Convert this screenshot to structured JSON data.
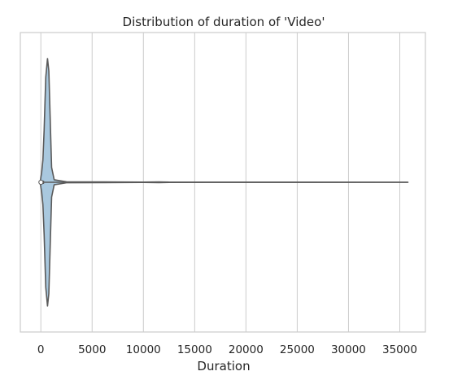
{
  "chart_data": {
    "type": "violin",
    "title": "Distribution of duration of 'Video'",
    "xlabel": "Duration",
    "ylabel": "",
    "xlim": [
      -2000,
      37500
    ],
    "xticks": [
      0,
      5000,
      10000,
      15000,
      20000,
      25000,
      30000,
      35000
    ],
    "xtick_labels": [
      "0",
      "5000",
      "10000",
      "15000",
      "20000",
      "25000",
      "30000",
      "35000"
    ],
    "grid": "vertical",
    "orientation": "horizontal",
    "summary": {
      "min": 0,
      "max": 35800,
      "q1": 0,
      "median": 10,
      "q3": 120
    },
    "density_profile": [
      {
        "x": -60,
        "w": 0.0
      },
      {
        "x": 0,
        "w": 0.04
      },
      {
        "x": 80,
        "w": 0.08
      },
      {
        "x": 200,
        "w": 0.18
      },
      {
        "x": 320,
        "w": 0.42
      },
      {
        "x": 480,
        "w": 0.85
      },
      {
        "x": 650,
        "w": 1.0
      },
      {
        "x": 780,
        "w": 0.9
      },
      {
        "x": 900,
        "w": 0.55
      },
      {
        "x": 1050,
        "w": 0.12
      },
      {
        "x": 1300,
        "w": 0.02
      },
      {
        "x": 2500,
        "w": 0.004
      },
      {
        "x": 10000,
        "w": 0.0015
      },
      {
        "x": 11500,
        "w": 0.003
      },
      {
        "x": 12500,
        "w": 0.001
      },
      {
        "x": 20000,
        "w": 0.0008
      },
      {
        "x": 35800,
        "w": 0.0
      }
    ],
    "colors": {
      "violin_fill": "#a9c8de",
      "violin_edge": "#5a5a5a",
      "grid": "#cccccc",
      "axes_edge": "#cccccc",
      "text": "#262626",
      "whisker": "#5a5a5a",
      "median_dot": "#ffffff"
    }
  }
}
